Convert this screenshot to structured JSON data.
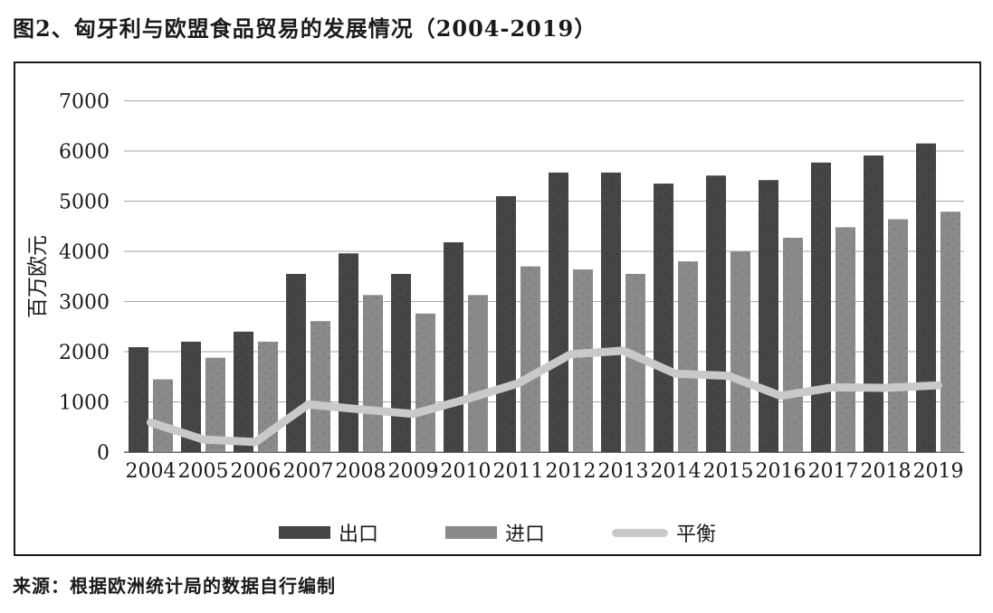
{
  "title": "图2、匈牙利与欧盟食品贸易的发展情况（2004-2019）",
  "source_note": "来源：根据欧洲统计局的数据自行编制",
  "colors": {
    "export_bar": "#454545",
    "import_bar": "#8a8a8a",
    "balance_line": "#c9c9c9",
    "gridline": "#a6a6a6",
    "axis_line": "#666666",
    "frame_border": "#1a1a1a",
    "text": "#1a1a1a"
  },
  "chart_data": {
    "type": "bar",
    "title": "匈牙利与欧盟食品贸易的发展情况（2004-2019）",
    "ylabel": "百万欧元",
    "xlabel": "",
    "ylim": [
      0,
      7000
    ],
    "yticks": [
      0,
      1000,
      2000,
      3000,
      4000,
      5000,
      6000,
      7000
    ],
    "grid": true,
    "legend_position": "bottom-inside",
    "categories": [
      "2004",
      "2005",
      "2006",
      "2007",
      "2008",
      "2009",
      "2010",
      "2011",
      "2012",
      "2013",
      "2014",
      "2015",
      "2016",
      "2017",
      "2018",
      "2019"
    ],
    "series": [
      {
        "name": "出口",
        "type": "bar",
        "color": "#454545",
        "values": [
          2090,
          2200,
          2400,
          3550,
          3960,
          3550,
          4180,
          5100,
          5570,
          5570,
          5350,
          5510,
          5420,
          5770,
          5910,
          6150
        ]
      },
      {
        "name": "进口",
        "type": "bar",
        "color": "#8a8a8a",
        "values": [
          1450,
          1880,
          2200,
          2610,
          3130,
          2760,
          3130,
          3700,
          3640,
          3550,
          3800,
          4000,
          4270,
          4480,
          4640,
          4790
        ]
      },
      {
        "name": "平衡",
        "type": "line",
        "color": "#c9c9c9",
        "values": [
          590,
          250,
          200,
          950,
          850,
          760,
          1050,
          1370,
          1950,
          2020,
          1560,
          1520,
          1120,
          1290,
          1280,
          1330
        ]
      }
    ]
  }
}
